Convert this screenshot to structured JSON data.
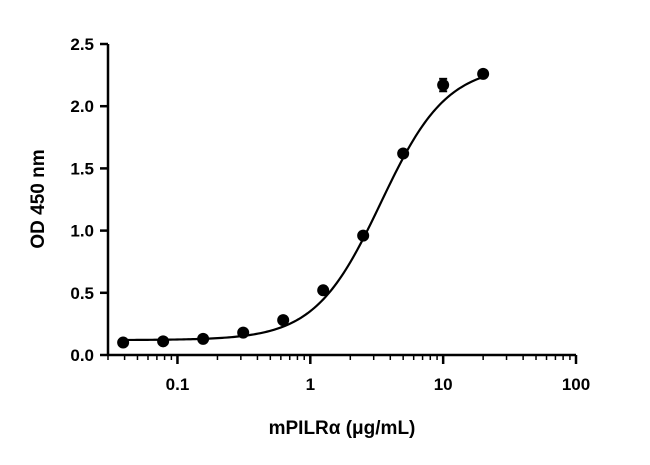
{
  "chart_data": {
    "type": "scatter",
    "xlabel": "mPILRα (μg/mL)",
    "ylabel": "OD 450 nm",
    "xscale": "log",
    "xlim": [
      0.03,
      100
    ],
    "ylim": [
      0,
      2.5
    ],
    "x_ticks": [
      {
        "value": 0.1,
        "label": "0.1"
      },
      {
        "value": 1,
        "label": "1"
      },
      {
        "value": 10,
        "label": "10"
      },
      {
        "value": 100,
        "label": "100"
      }
    ],
    "y_ticks": [
      {
        "value": 0.0,
        "label": "0.0"
      },
      {
        "value": 0.5,
        "label": "0.5"
      },
      {
        "value": 1.0,
        "label": "1.0"
      },
      {
        "value": 1.5,
        "label": "1.5"
      },
      {
        "value": 2.0,
        "label": "2.0"
      },
      {
        "value": 2.5,
        "label": "2.5"
      }
    ],
    "grid": false,
    "series": [
      {
        "points": [
          {
            "x": 0.039,
            "y": 0.1
          },
          {
            "x": 0.078,
            "y": 0.11
          },
          {
            "x": 0.156,
            "y": 0.13
          },
          {
            "x": 0.3125,
            "y": 0.18
          },
          {
            "x": 0.625,
            "y": 0.28
          },
          {
            "x": 1.25,
            "y": 0.52
          },
          {
            "x": 2.5,
            "y": 0.96
          },
          {
            "x": 5,
            "y": 1.62
          },
          {
            "x": 10,
            "y": 2.17,
            "err": 0.05
          },
          {
            "x": 20,
            "y": 2.26
          }
        ],
        "fit": {
          "model": "4PL",
          "bottom": 0.12,
          "top": 2.33,
          "ec50": 3.4,
          "hill": 1.75
        },
        "color": "#000000"
      }
    ]
  }
}
